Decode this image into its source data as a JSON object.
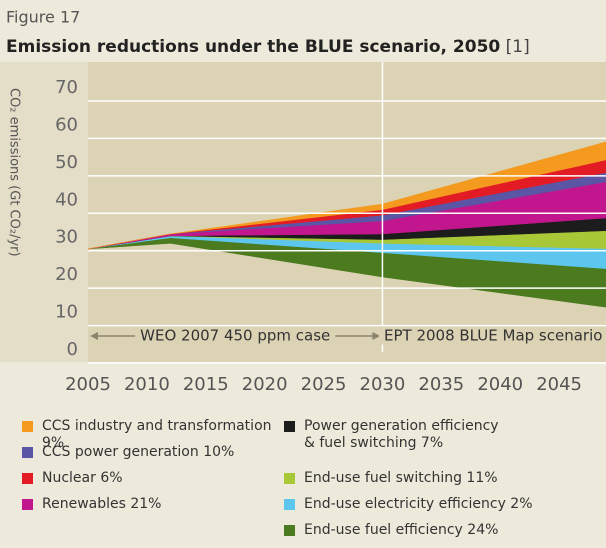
{
  "figure_label": "Figure 17",
  "chart_data": {
    "type": "stacked_area",
    "title": "Emission reductions under the BLUE scenario, 2050",
    "title_note": "[1]",
    "y_label": "CO₂ emissions (Gt CO₂/yr)",
    "x": [
      2005,
      2012,
      2030,
      2050
    ],
    "xlim": [
      2005,
      2050
    ],
    "xticks": [
      2005,
      2010,
      2015,
      2020,
      2025,
      2030,
      2035,
      2040,
      2045
    ],
    "ylim": [
      0,
      70
    ],
    "yticks": [
      0,
      10,
      20,
      30,
      40,
      50,
      60,
      70
    ],
    "grid": true,
    "baseline": [
      27,
      28.5,
      19.5,
      11
    ],
    "series": [
      {
        "name": "End-use fuel efficiency 24%",
        "color": "#4b7a1f",
        "values": [
          0,
          1.5,
          6.5,
          10.5
        ]
      },
      {
        "name": "End-use electricity efficiency 2%",
        "color": "#5cc6ee",
        "values": [
          0,
          0.5,
          2.5,
          5.5
        ]
      },
      {
        "name": "End-use fuel switching 11%",
        "color": "#a9c838",
        "values": [
          0,
          0,
          1,
          5
        ]
      },
      {
        "name": "Power generation efficiency\n& fuel switching 7%",
        "color": "#1c1c1c",
        "values": [
          0,
          0,
          1.5,
          3.5
        ]
      },
      {
        "name": "Renewables 21%",
        "color": "#c1168d",
        "values": [
          0,
          0.5,
          3.5,
          10
        ]
      },
      {
        "name": "CCS power generation 10%",
        "color": "#5b55a6",
        "values": [
          0,
          0,
          1.5,
          2.5
        ]
      },
      {
        "name": "Nuclear 6%",
        "color": "#e31b24",
        "values": [
          0,
          0,
          1.5,
          3.5
        ]
      },
      {
        "name": "CCS industry and transformation 9%",
        "color": "#f39a1f",
        "values": [
          0,
          0,
          1.5,
          5
        ]
      }
    ],
    "annotations": [
      {
        "text": "WEO 2007 450 ppm case",
        "from": 2005,
        "to": 2030
      },
      {
        "text": "EPT 2008 BLUE Map scenario",
        "from": 2030,
        "to": 2050
      }
    ]
  }
}
